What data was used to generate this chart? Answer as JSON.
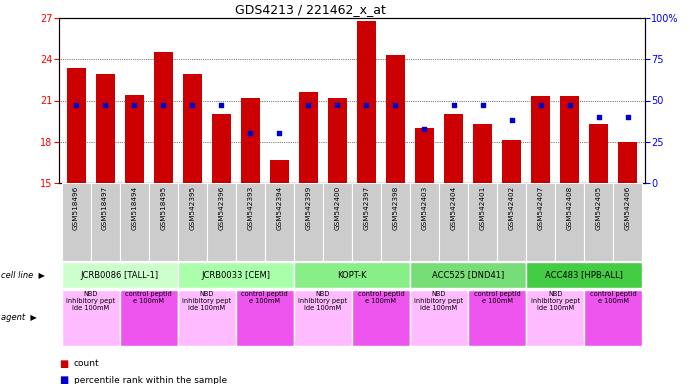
{
  "title": "GDS4213 / 221462_x_at",
  "gsm_labels": [
    "GSM518496",
    "GSM518497",
    "GSM518494",
    "GSM518495",
    "GSM542395",
    "GSM542396",
    "GSM542393",
    "GSM542394",
    "GSM542399",
    "GSM542400",
    "GSM542397",
    "GSM542398",
    "GSM542403",
    "GSM542404",
    "GSM542401",
    "GSM542402",
    "GSM542407",
    "GSM542408",
    "GSM542405",
    "GSM542406"
  ],
  "bar_values": [
    23.4,
    22.9,
    21.4,
    24.5,
    22.9,
    20.0,
    21.2,
    16.7,
    21.6,
    21.2,
    26.8,
    24.3,
    19.0,
    20.0,
    19.3,
    18.1,
    21.3,
    21.3,
    19.3,
    18.0
  ],
  "dot_values": [
    47,
    47,
    47,
    47,
    47,
    47,
    30,
    30,
    47,
    47,
    47,
    47,
    33,
    47,
    47,
    38,
    47,
    47,
    40,
    40
  ],
  "bar_color": "#cc0000",
  "dot_color": "#0000cc",
  "ymin": 15,
  "ymax": 27,
  "yticks_left": [
    15,
    18,
    21,
    24,
    27
  ],
  "yticks_right": [
    0,
    25,
    50,
    75,
    100
  ],
  "cell_line_groups": [
    {
      "label": "JCRB0086 [TALL-1]",
      "start": 0,
      "end": 3,
      "color": "#ccffcc"
    },
    {
      "label": "JCRB0033 [CEM]",
      "start": 4,
      "end": 7,
      "color": "#aaffaa"
    },
    {
      "label": "KOPT-K",
      "start": 8,
      "end": 11,
      "color": "#88ee88"
    },
    {
      "label": "ACC525 [DND41]",
      "start": 12,
      "end": 15,
      "color": "#77dd77"
    },
    {
      "label": "ACC483 [HPB-ALL]",
      "start": 16,
      "end": 19,
      "color": "#44cc44"
    }
  ],
  "agent_groups": [
    {
      "label": "NBD\ninhibitory pept\nide 100mM",
      "start": 0,
      "end": 1,
      "color": "#ffbbff"
    },
    {
      "label": "control peptid\ne 100mM",
      "start": 2,
      "end": 3,
      "color": "#ee55ee"
    },
    {
      "label": "NBD\ninhibitory pept\nide 100mM",
      "start": 4,
      "end": 5,
      "color": "#ffbbff"
    },
    {
      "label": "control peptid\ne 100mM",
      "start": 6,
      "end": 7,
      "color": "#ee55ee"
    },
    {
      "label": "NBD\ninhibitory pept\nide 100mM",
      "start": 8,
      "end": 9,
      "color": "#ffbbff"
    },
    {
      "label": "control peptid\ne 100mM",
      "start": 10,
      "end": 11,
      "color": "#ee55ee"
    },
    {
      "label": "NBD\ninhibitory pept\nide 100mM",
      "start": 12,
      "end": 13,
      "color": "#ffbbff"
    },
    {
      "label": "control peptid\ne 100mM",
      "start": 14,
      "end": 15,
      "color": "#ee55ee"
    },
    {
      "label": "NBD\ninhibitory pept\nide 100mM",
      "start": 16,
      "end": 17,
      "color": "#ffbbff"
    },
    {
      "label": "control peptid\ne 100mM",
      "start": 18,
      "end": 19,
      "color": "#ee55ee"
    }
  ],
  "tick_label_bg": "#cccccc",
  "cell_line_label": "cell line",
  "agent_label": "agent",
  "legend": [
    {
      "label": "count",
      "color": "#cc0000"
    },
    {
      "label": "percentile rank within the sample",
      "color": "#0000cc"
    }
  ],
  "fig_bg": "#ffffff"
}
